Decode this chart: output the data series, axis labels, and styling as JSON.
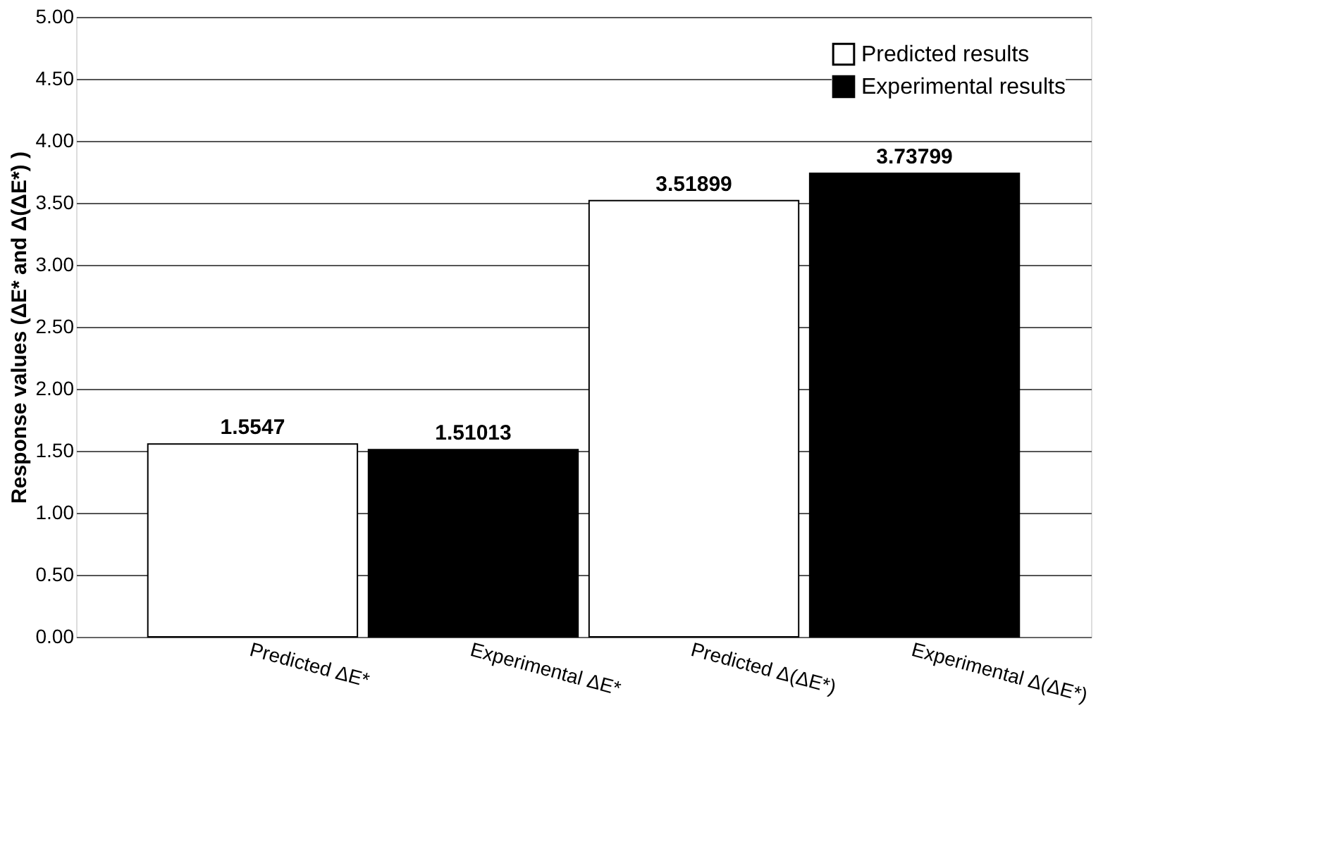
{
  "chart_data": {
    "type": "bar",
    "ylabel": "Response values  (ΔE* and  Δ(ΔE*) )",
    "categories": [
      "Predicted ΔE*",
      "Experimental ΔE*",
      "Predicted Δ(ΔE*)",
      "Experimental Δ(ΔE*)"
    ],
    "series": [
      {
        "name": "Predicted results",
        "color": "#ffffff",
        "values": [
          1.5547,
          null,
          3.51899,
          null
        ]
      },
      {
        "name": "Experimental results",
        "color": "#000000",
        "values": [
          null,
          1.51013,
          null,
          3.73799
        ]
      }
    ],
    "ylim": [
      0,
      5
    ],
    "yticks": [
      {
        "value": 0,
        "label": "0.00"
      },
      {
        "value": 0.5,
        "label": "0.50"
      },
      {
        "value": 1,
        "label": "1.00"
      },
      {
        "value": 1.5,
        "label": "1.50"
      },
      {
        "value": 2,
        "label": "2.00"
      },
      {
        "value": 2.5,
        "label": "2.50"
      },
      {
        "value": 3,
        "label": "3.00"
      },
      {
        "value": 3.5,
        "label": "3.50"
      },
      {
        "value": 4,
        "label": "4.00"
      },
      {
        "value": 4.5,
        "label": "4.50"
      },
      {
        "value": 5,
        "label": "5.00"
      }
    ],
    "grid": "y",
    "legend": "top right",
    "data_labels": true
  }
}
